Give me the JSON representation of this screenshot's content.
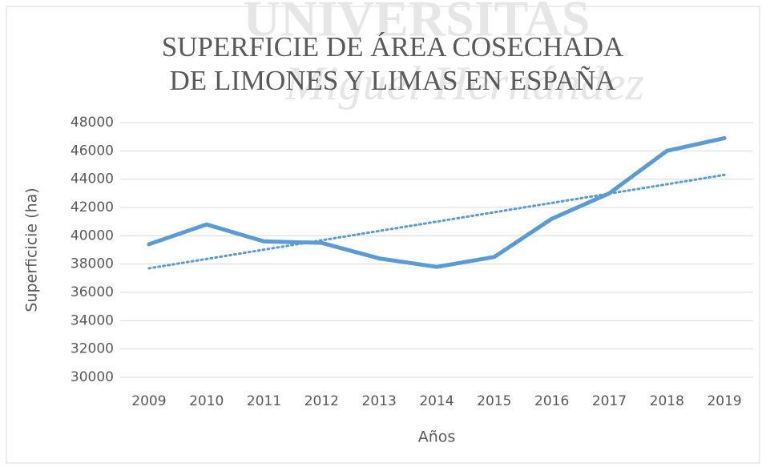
{
  "chart_data": {
    "type": "line",
    "watermark": [
      "UNIVERSITAS",
      "Miguel Hernández"
    ],
    "title": [
      "SUPERFICIE DE ÁREA COSECHADA",
      "DE LIMONES Y LIMAS EN ESPAÑA"
    ],
    "x_label": "Años",
    "y_label": "Superficicie (ha)",
    "categories": [
      "2009",
      "2010",
      "2011",
      "2012",
      "2013",
      "2014",
      "2015",
      "2016",
      "2017",
      "2018",
      "2019"
    ],
    "series": [
      {
        "color": "#5b9bd5",
        "values": [
          39400,
          40800,
          39600,
          39500,
          38400,
          37800,
          38500,
          41200,
          43000,
          46000,
          46900
        ]
      }
    ],
    "trendline": {
      "color": "#5b9bd5",
      "style": "dotted",
      "values": [
        37700,
        44300
      ]
    },
    "ylim": [
      30000,
      48000
    ],
    "yticks": [
      30000,
      32000,
      34000,
      36000,
      38000,
      40000,
      42000,
      44000,
      46000,
      48000
    ],
    "grid": true
  }
}
